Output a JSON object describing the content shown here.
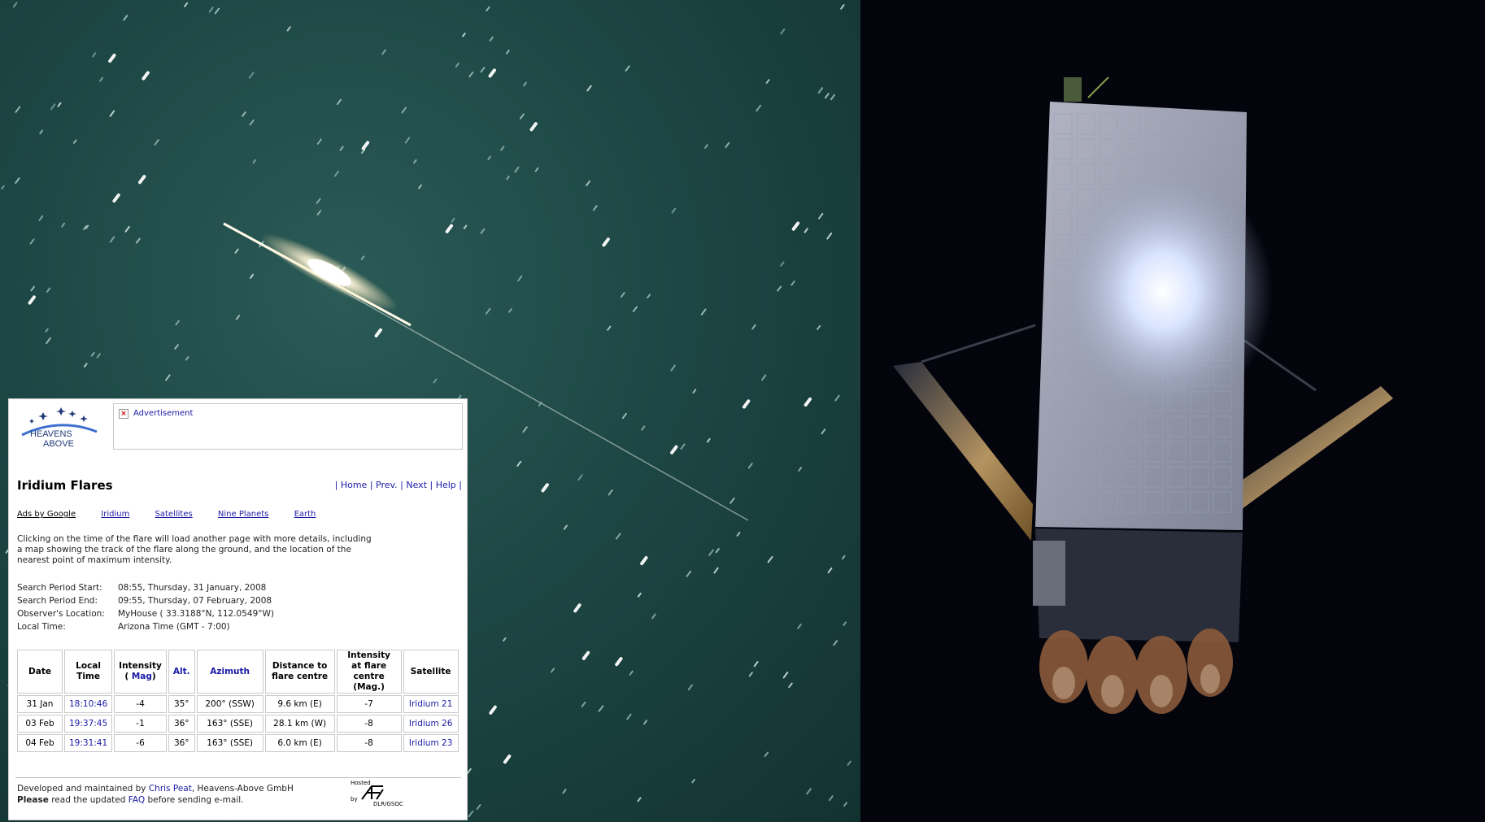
{
  "logo": {
    "line1": "HEAVENS",
    "line2": "ABOVE"
  },
  "ad": {
    "label": "Advertisement"
  },
  "header": {
    "title": "Iridium Flares",
    "nav": [
      "Home",
      "Prev.",
      "Next",
      "Help"
    ]
  },
  "adlinks": [
    "Ads by Google",
    "Iridium",
    "Satellites",
    "Nine Planets",
    "Earth"
  ],
  "intro": "Clicking on the time of the flare will load another page with more details, including a map showing the track of the flare along the ground, and the location of the nearest point of maximum intensity.",
  "params": [
    {
      "key": "Search Period Start:",
      "value": "08:55, Thursday, 31 January, 2008"
    },
    {
      "key": "Search Period End:",
      "value": "09:55, Thursday, 07 February, 2008"
    },
    {
      "key": "Observer's Location:",
      "value": "MyHouse ( 33.3188°N, 112.0549°W)"
    },
    {
      "key": "Local Time:",
      "value": "Arizona Time (GMT - 7:00)"
    }
  ],
  "table": {
    "headers": {
      "date": "Date",
      "local_time": "Local Time",
      "intensity": "Intensity",
      "intensity_mag": "Mag",
      "alt": "Alt.",
      "azimuth": "Azimuth",
      "distance": "Distance to flare centre",
      "intensity_centre": "Intensity at flare centre (Mag.)",
      "satellite": "Satellite"
    },
    "rows": [
      {
        "date": "31 Jan",
        "time": "18:10:46",
        "intensity": "-4",
        "alt": "35°",
        "azimuth": "200° (SSW)",
        "distance": "9.6 km (E)",
        "centre": "-7",
        "satellite": "Iridium 21"
      },
      {
        "date": "03 Feb",
        "time": "19:37:45",
        "intensity": "-1",
        "alt": "36°",
        "azimuth": "163° (SSE)",
        "distance": "28.1 km (W)",
        "centre": "-8",
        "satellite": "Iridium 26"
      },
      {
        "date": "04 Feb",
        "time": "19:31:41",
        "intensity": "-6",
        "alt": "36°",
        "azimuth": "163° (SSE)",
        "distance": "6.0 km (E)",
        "centre": "-8",
        "satellite": "Iridium 23"
      }
    ]
  },
  "footer": {
    "line1_prefix": "Developed and maintained by ",
    "author": "Chris Peat",
    "line1_suffix": ", Heavens-Above GmbH",
    "please": "Please",
    "line2_mid": " read the updated ",
    "faq": "FAQ",
    "line2_suffix": " before sending e-mail.",
    "hosted1": "Hosted",
    "hosted2": "by",
    "hosted3": "DLR/GSOC"
  },
  "colors": {
    "link": "#1a1aa6",
    "sky": "#1d4744",
    "space": "#03040c"
  }
}
